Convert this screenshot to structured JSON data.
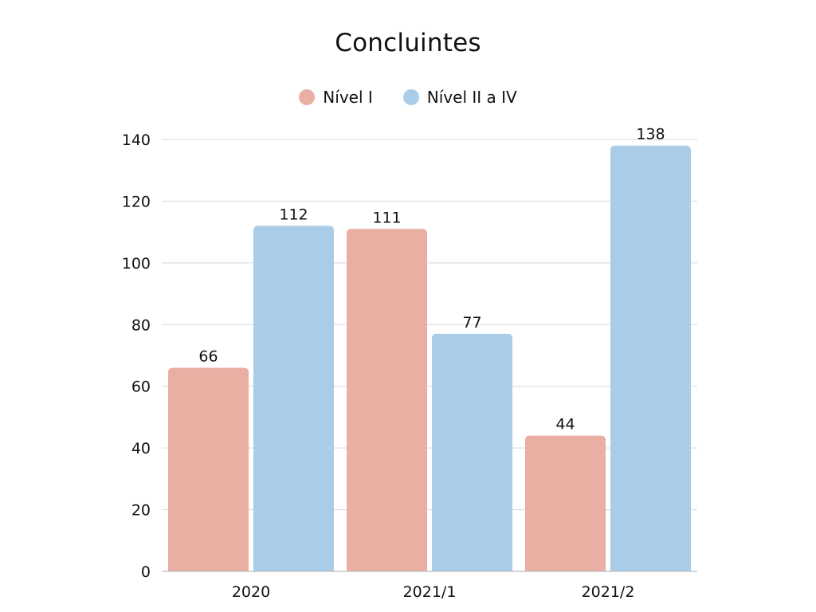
{
  "chart_data": {
    "type": "bar",
    "title": "Concluintes",
    "categories": [
      "2020",
      "2021/1",
      "2021/2"
    ],
    "series": [
      {
        "name": "Nível I",
        "values": [
          66,
          111,
          44
        ],
        "color": "#E9AFA3"
      },
      {
        "name": "Nível II a IV",
        "values": [
          112,
          77,
          138
        ],
        "color": "#A9CDE8"
      }
    ],
    "xlabel": "",
    "ylabel": "",
    "ylim": [
      0,
      140
    ],
    "yticks": [
      0,
      20,
      40,
      60,
      80,
      100,
      120,
      140
    ],
    "grid": true,
    "legend_position": "top-center",
    "gridline_color": "#D9D9D9",
    "axis_color": "#BDBDBD"
  }
}
